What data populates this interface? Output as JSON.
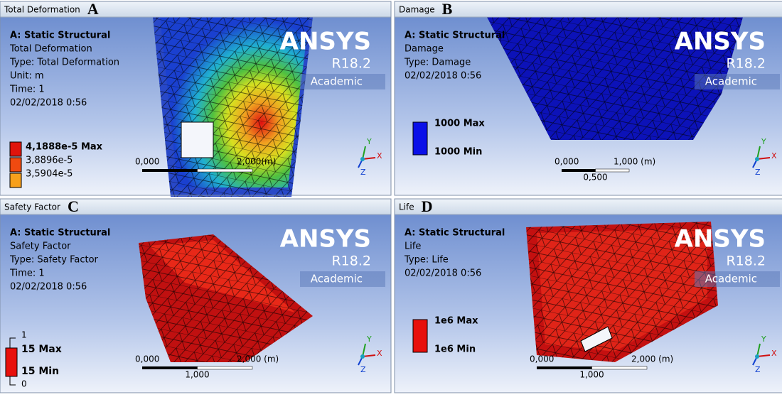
{
  "branding": {
    "name": "ANSYS",
    "version": "R18.2",
    "edition": "Academic"
  },
  "triad": [
    "Y",
    "X",
    "Z"
  ],
  "panels": [
    {
      "title": "Total Deformation",
      "letter": "A",
      "info": [
        "A: Static Structural",
        "Total Deformation",
        "Type: Total Deformation",
        "Unit: m",
        "Time: 1",
        "02/02/2018 0:56"
      ],
      "legend": {
        "labels": [
          "4,1888e-5 Max",
          "3,8896e-5",
          "3,5904e-5"
        ],
        "colors": [
          "#e0140c",
          "#f04a10",
          "#f7a01c"
        ]
      },
      "scale": [
        "0,000",
        "2,000(m)"
      ]
    },
    {
      "title": "Damage",
      "letter": "B",
      "info": [
        "A: Static Structural",
        "Damage",
        "Type: Damage",
        "02/02/2018 0:56"
      ],
      "legend": {
        "labels": [
          "1000 Max",
          "1000 Min"
        ],
        "colors": [
          "#0a10e8"
        ]
      },
      "scale": [
        "0,000",
        "1,000 (m)",
        "0,500"
      ]
    },
    {
      "title": "Safety Factor",
      "letter": "C",
      "info": [
        "A: Static Structural",
        "Safety Factor",
        "Type: Safety Factor",
        "Time: 1",
        "02/02/2018 0:56"
      ],
      "legend": {
        "labels": [
          "1",
          "15 Max",
          "15 Min",
          "0"
        ],
        "colors": [
          "#e8100c"
        ]
      },
      "scale": [
        "0,000",
        "2,000 (m)",
        "1,000"
      ]
    },
    {
      "title": "Life",
      "letter": "D",
      "info": [
        "A: Static Structural",
        "Life",
        "Type: Life",
        "02/02/2018 0:56"
      ],
      "legend": {
        "labels": [
          "1e6 Max",
          "1e6 Min"
        ],
        "colors": [
          "#e8100c"
        ]
      },
      "scale": [
        "0,000",
        "2,000 (m)",
        "1,000"
      ]
    }
  ]
}
